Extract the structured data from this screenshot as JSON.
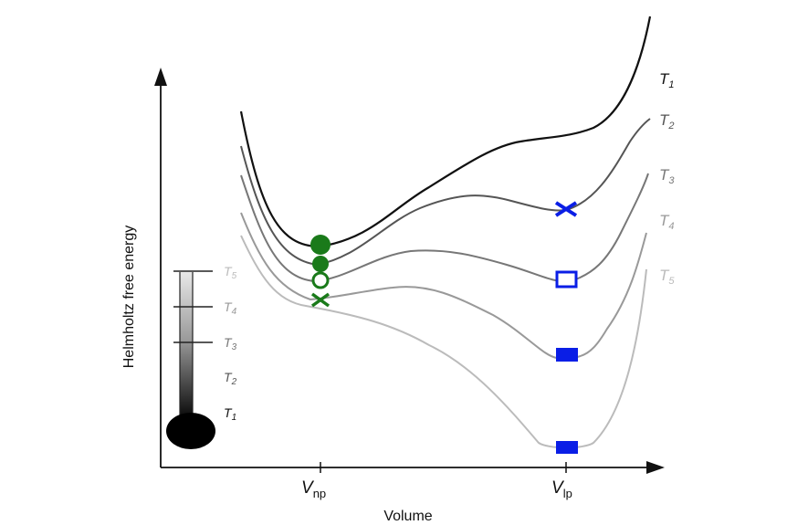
{
  "axes": {
    "y_label": "Helmholtz free energy",
    "x_label": "Volume",
    "x_ticks": [
      {
        "main": "V",
        "sub": "np"
      },
      {
        "main": "V",
        "sub": "lp"
      }
    ]
  },
  "curves": [
    {
      "label_main": "T",
      "label_sub": "1",
      "color": "#111111"
    },
    {
      "label_main": "T",
      "label_sub": "2",
      "color": "#555555"
    },
    {
      "label_main": "T",
      "label_sub": "3",
      "color": "#777777"
    },
    {
      "label_main": "T",
      "label_sub": "4",
      "color": "#999999"
    },
    {
      "label_main": "T",
      "label_sub": "5",
      "color": "#bbbbbb"
    }
  ],
  "thermometer": {
    "labels": [
      {
        "main": "T",
        "sub": "5"
      },
      {
        "main": "T",
        "sub": "4"
      },
      {
        "main": "T",
        "sub": "3"
      },
      {
        "main": "T",
        "sub": "2"
      },
      {
        "main": "T",
        "sub": "1"
      }
    ]
  },
  "colors": {
    "np_marker": "#1a7a1a",
    "lp_marker": "#0a1ee6",
    "axis": "#111111"
  }
}
